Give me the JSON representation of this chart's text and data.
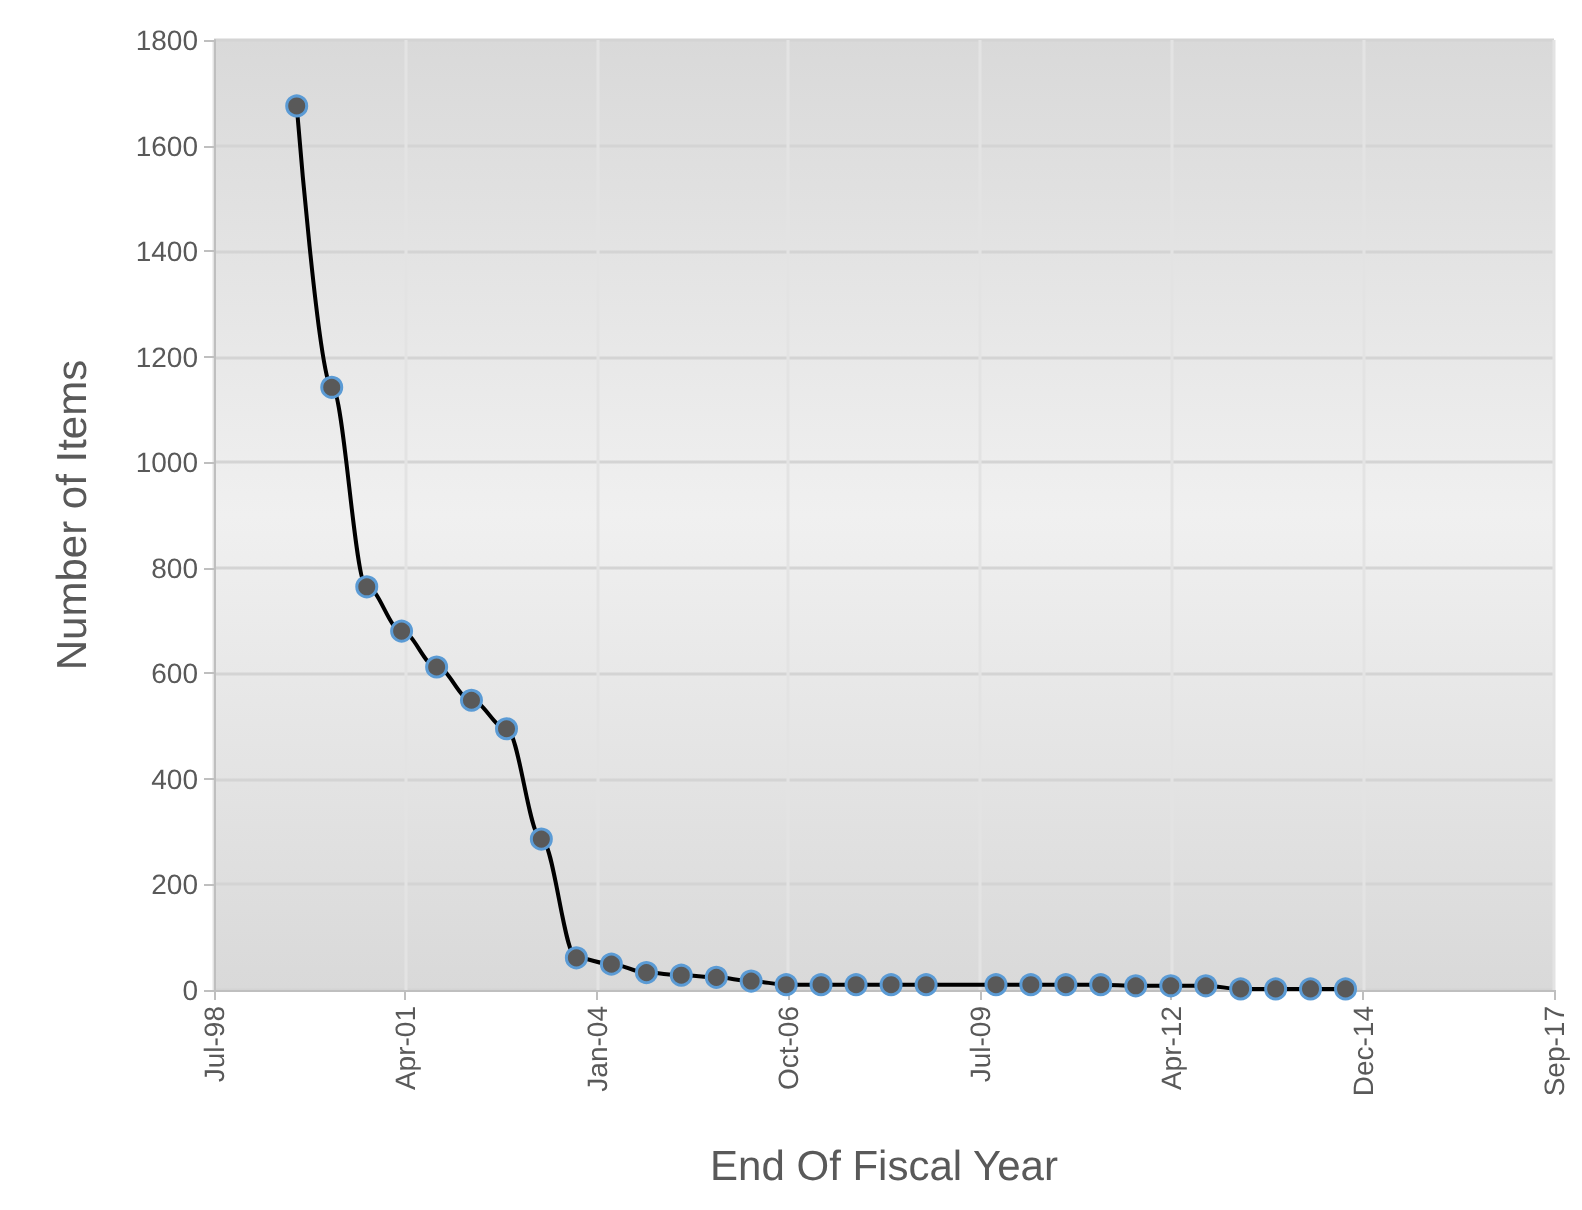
{
  "chart_data": {
    "type": "line",
    "xlabel": "End Of Fiscal Year",
    "ylabel": "Number of Items",
    "x": [
      "1999-09-30",
      "2000-03-31",
      "2000-09-30",
      "2001-03-31",
      "2001-09-30",
      "2002-03-31",
      "2002-09-30",
      "2003-03-31",
      "2003-09-30",
      "2004-03-31",
      "2004-09-30",
      "2005-03-31",
      "2005-09-30",
      "2006-03-31",
      "2006-09-30",
      "2007-03-31",
      "2007-09-30",
      "2008-03-31",
      "2008-09-30",
      "2009-09-30",
      "2010-03-31",
      "2010-09-30",
      "2011-03-31",
      "2011-09-30",
      "2012-03-31",
      "2012-09-30",
      "2013-03-31",
      "2013-09-30",
      "2014-03-31",
      "2014-09-30"
    ],
    "series": [
      {
        "color": "#000000",
        "values": [
          1675,
          1142,
          764,
          680,
          612,
          549,
          495,
          286,
          61,
          49,
          33,
          28,
          24,
          17,
          10,
          10,
          10,
          10,
          10,
          10,
          10,
          10,
          10,
          8,
          8,
          8,
          2,
          2,
          2,
          2
        ]
      }
    ],
    "xlim": [
      "1998-07-25",
      "2017-09-23"
    ],
    "xticks": [
      {
        "value": "1998-07-25",
        "label": "Jul-98"
      },
      {
        "value": "2001-04-20",
        "label": "Apr-01"
      },
      {
        "value": "2004-01-15",
        "label": "Jan-04"
      },
      {
        "value": "2006-10-11",
        "label": "Oct-06"
      },
      {
        "value": "2009-07-07",
        "label": "Jul-09"
      },
      {
        "value": "2012-04-02",
        "label": "Apr-12"
      },
      {
        "value": "2014-12-28",
        "label": "Dec-14"
      },
      {
        "value": "2017-09-23",
        "label": "Sep-17"
      }
    ],
    "ylim": [
      0,
      1800
    ],
    "yticks": [
      0,
      200,
      400,
      600,
      800,
      1000,
      1200,
      1400,
      1600,
      1800
    ],
    "grid": true,
    "marker": "circle",
    "line_style": "solid"
  }
}
